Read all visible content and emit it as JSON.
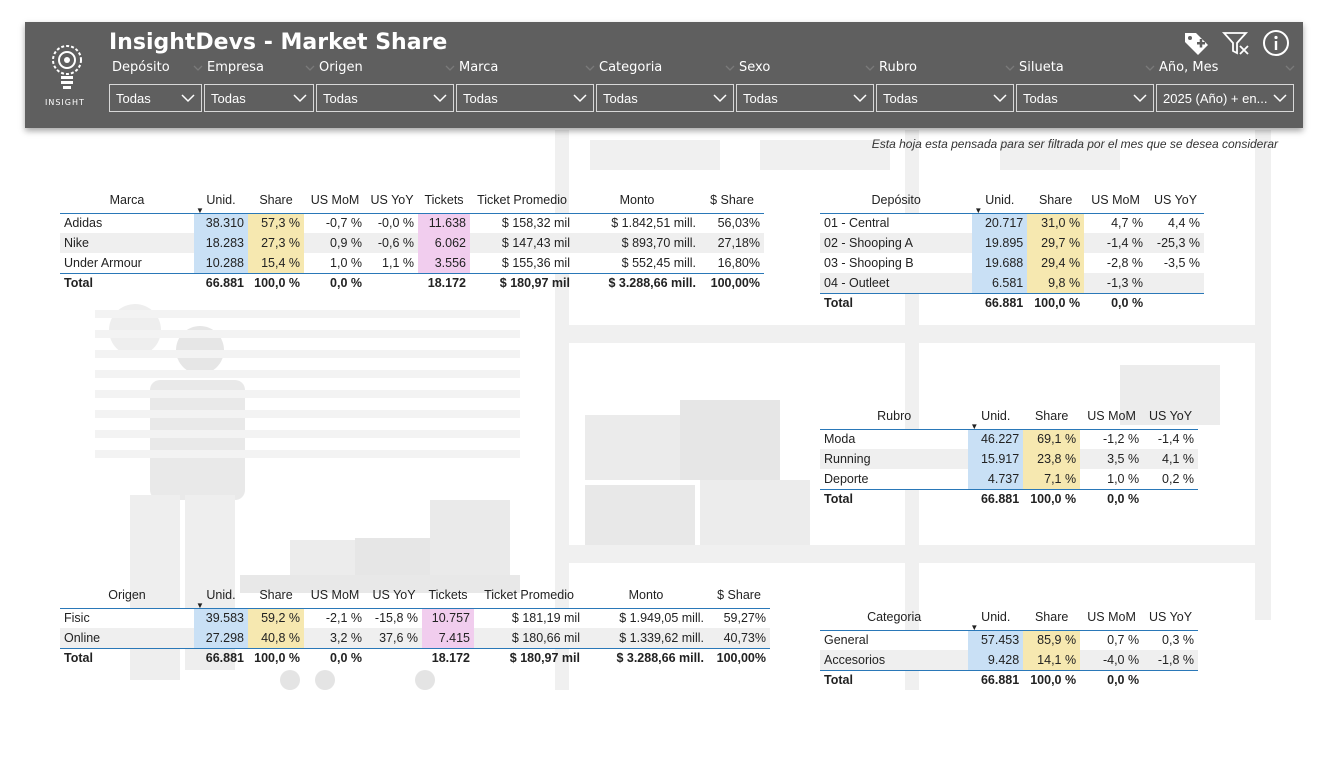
{
  "header": {
    "title": "InsightDevs - Market Share",
    "logo_text": "INSIGHT",
    "icons": [
      "tag-plus-icon",
      "clear-filter-icon",
      "info-icon"
    ]
  },
  "slicers": [
    {
      "label": "Depósito",
      "value": "Todas"
    },
    {
      "label": "Empresa",
      "value": "Todas"
    },
    {
      "label": "Origen",
      "value": "Todas"
    },
    {
      "label": "Marca",
      "value": "Todas"
    },
    {
      "label": "Categoria",
      "value": "Todas"
    },
    {
      "label": "Sexo",
      "value": "Todas"
    },
    {
      "label": "Rubro",
      "value": "Todas"
    },
    {
      "label": "Silueta",
      "value": "Todas"
    },
    {
      "label": "Año, Mes",
      "value": "2025 (Año) + en..."
    }
  ],
  "note": "Esta hoja esta pensada para ser filtrada por el mes que se desea considerar",
  "marca_table": {
    "headers": [
      "Marca",
      "Unid.",
      "Share",
      "US MoM",
      "US YoY",
      "Tickets",
      "Ticket Promedio",
      "Monto",
      "$ Share"
    ],
    "rows": [
      [
        "Adidas",
        "38.310",
        "57,3 %",
        "-0,7 %",
        "-0,0 %",
        "11.638",
        "$ 158,32 mil",
        "$ 1.842,51 mill.",
        "56,03%"
      ],
      [
        "Nike",
        "18.283",
        "27,3 %",
        "0,9 %",
        "-0,6 %",
        "6.062",
        "$ 147,43 mil",
        "$ 893,70 mill.",
        "27,18%"
      ],
      [
        "Under Armour",
        "10.288",
        "15,4 %",
        "1,0 %",
        "1,1 %",
        "3.556",
        "$ 155,36 mil",
        "$ 552,45 mill.",
        "16,80%"
      ]
    ],
    "total": [
      "Total",
      "66.881",
      "100,0 %",
      "0,0 %",
      "",
      "18.172",
      "$ 180,97 mil",
      "$ 3.288,66 mill.",
      "100,00%"
    ]
  },
  "origen_table": {
    "headers": [
      "Origen",
      "Unid.",
      "Share",
      "US MoM",
      "US YoY",
      "Tickets",
      "Ticket Promedio",
      "Monto",
      "$ Share"
    ],
    "rows": [
      [
        "Fisic",
        "39.583",
        "59,2 %",
        "-2,1 %",
        "-15,8 %",
        "10.757",
        "$ 181,19 mil",
        "$ 1.949,05 mill.",
        "59,27%"
      ],
      [
        "Online",
        "27.298",
        "40,8 %",
        "3,2 %",
        "37,6 %",
        "7.415",
        "$ 180,66 mil",
        "$ 1.339,62 mill.",
        "40,73%"
      ]
    ],
    "total": [
      "Total",
      "66.881",
      "100,0 %",
      "0,0 %",
      "",
      "18.172",
      "$ 180,97 mil",
      "$ 3.288,66 mill.",
      "100,00%"
    ]
  },
  "deposito_table": {
    "headers": [
      "Depósito",
      "Unid.",
      "Share",
      "US MoM",
      "US YoY"
    ],
    "rows": [
      [
        "01 - Central",
        "20.717",
        "31,0 %",
        "4,7 %",
        "4,4 %"
      ],
      [
        "02 - Shooping A",
        "19.895",
        "29,7 %",
        "-1,4 %",
        "-25,3 %"
      ],
      [
        "03 - Shooping B",
        "19.688",
        "29,4 %",
        "-2,8 %",
        "-3,5 %"
      ],
      [
        "04 - Outleet",
        "6.581",
        "9,8 %",
        "-1,3 %",
        ""
      ]
    ],
    "total": [
      "Total",
      "66.881",
      "100,0 %",
      "0,0 %",
      ""
    ]
  },
  "rubro_table": {
    "headers": [
      "Rubro",
      "Unid.",
      "Share",
      "US MoM",
      "US YoY"
    ],
    "rows": [
      [
        "Moda",
        "46.227",
        "69,1 %",
        "-1,2 %",
        "-1,4 %"
      ],
      [
        "Running",
        "15.917",
        "23,8 %",
        "3,5 %",
        "4,1 %"
      ],
      [
        "Deporte",
        "4.737",
        "7,1 %",
        "1,0 %",
        "0,2 %"
      ]
    ],
    "total": [
      "Total",
      "66.881",
      "100,0 %",
      "0,0 %",
      ""
    ]
  },
  "categoria_table": {
    "headers": [
      "Categoria",
      "Unid.",
      "Share",
      "US MoM",
      "US YoY"
    ],
    "rows": [
      [
        "General",
        "57.453",
        "85,9 %",
        "0,7 %",
        "0,3 %"
      ],
      [
        "Accesorios",
        "9.428",
        "14,1 %",
        "-4,0 %",
        "-1,8 %"
      ]
    ],
    "total": [
      "Total",
      "66.881",
      "100,0 %",
      "0,0 %",
      ""
    ]
  },
  "colors": {
    "header_bg": "#5f5f5f",
    "unid_highlight": "#c9e0f5",
    "share_highlight": "#f6e8b0",
    "tickets_highlight": "#f1cdee",
    "rule": "#2a78b8"
  }
}
